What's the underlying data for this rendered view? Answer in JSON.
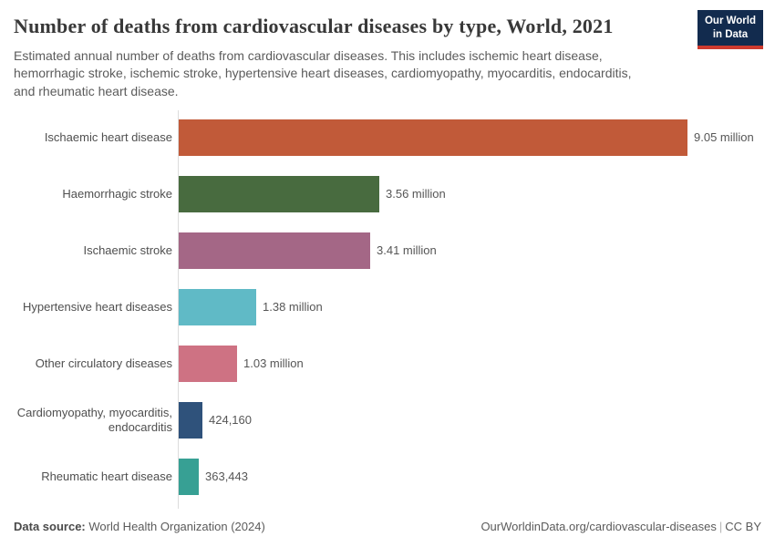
{
  "header": {
    "title": "Number of deaths from cardiovascular diseases by type, World, 2021",
    "subtitle": "Estimated annual number of deaths from cardiovascular diseases. This includes ischemic heart disease, hemorrhagic stroke, ischemic stroke, hypertensive heart diseases, cardiomyopathy, myocarditis, endocarditis, and rheumatic heart disease.",
    "logo": {
      "line1": "Our World",
      "line2": "in Data",
      "bg_color": "#122B4E",
      "accent_color": "#CE3A2E"
    }
  },
  "chart_data": {
    "type": "bar",
    "orientation": "horizontal",
    "title": "Number of deaths from cardiovascular diseases by type, World, 2021",
    "categories": [
      "Ischaemic heart disease",
      "Haemorrhagic stroke",
      "Ischaemic stroke",
      "Hypertensive heart diseases",
      "Other circulatory diseases",
      "Cardiomyopathy, myocarditis, endocarditis",
      "Rheumatic heart disease"
    ],
    "values": [
      9050000,
      3560000,
      3410000,
      1380000,
      1030000,
      424160,
      363443
    ],
    "value_labels": [
      "9.05 million",
      "3.56 million",
      "3.41 million",
      "1.38 million",
      "1.03 million",
      "424,160",
      "363,443"
    ],
    "colors": [
      "#C15A39",
      "#486B3F",
      "#A46786",
      "#60BAC6",
      "#CE7283",
      "#2F527B",
      "#37A094"
    ],
    "xlim": [
      0,
      9050000
    ],
    "grid": false,
    "legend": "none",
    "axis_line_color": "#dcdcdc"
  },
  "footer": {
    "source_label": "Data source:",
    "source_value": " World Health Organization (2024)",
    "credit_url": "OurWorldinData.org/cardiovascular-diseases",
    "separator": "|",
    "license": "CC BY"
  }
}
